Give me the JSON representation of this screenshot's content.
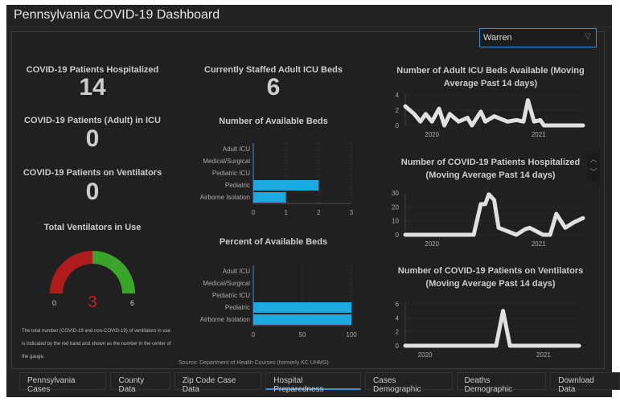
{
  "header": {
    "title": "Pennsylvania COVID-19 Dashboard"
  },
  "county_select": {
    "value": "Warren"
  },
  "indicators": [
    {
      "label": "COVID-19 Patients Hospitalized",
      "value": "14"
    },
    {
      "label": "COVID-19 Patients (Adult) in ICU",
      "value": "0"
    },
    {
      "label": "COVID-19 Patients on Ventilators",
      "value": "0"
    },
    {
      "label": "Currently Staffed Adult ICU Beds",
      "value": "6"
    }
  ],
  "gauge": {
    "title": "Total Ventilators in Use",
    "min": "0",
    "max": "6",
    "value": "3",
    "fraction": 0.5,
    "used_color": "#b01c1c",
    "free_color": "#3aa52a",
    "note": "The total number (COVID-19 and non-COVID-19) of ventilators in use is indicated by the red band and shown as the number in the center of the gauge."
  },
  "source": "Source: Department of Health Courses (formerly KC UHMS)",
  "chart_data": [
    {
      "type": "bar",
      "title": "Number of Available Beds",
      "categories": [
        "Adult ICU",
        "Medical/Surgical",
        "Pediatric ICU",
        "Pediatric",
        "Airborne Isolation"
      ],
      "values": [
        0,
        0,
        0,
        2,
        1
      ],
      "xlim": [
        0,
        3
      ],
      "ticks": [
        "0",
        "1",
        "2",
        "3"
      ],
      "color": "#1ba9e1"
    },
    {
      "type": "bar",
      "title": "Percent of Available Beds",
      "categories": [
        "Adult ICU",
        "Medical/Surgical",
        "Pediatric ICU",
        "Pediatric",
        "Airborne Isolation"
      ],
      "values": [
        0,
        0,
        0,
        100,
        100
      ],
      "xlim": [
        0,
        100
      ],
      "ticks": [
        "0",
        "50",
        "100"
      ],
      "color": "#1ba9e1"
    },
    {
      "type": "line",
      "title": "Number of Adult ICU Beds Available (Moving Average Past 14 days)",
      "xlabel_ticks": [
        "2020",
        "2021"
      ],
      "x_unit": "months since Jan 2020",
      "xlim": [
        -3,
        17
      ],
      "ylim": [
        0,
        4
      ],
      "yticks": [
        "0",
        "2",
        "4"
      ],
      "x": [
        -3,
        -2,
        -1.3,
        -0.7,
        0,
        0.8,
        1.4,
        2,
        3,
        4,
        4.5,
        5.5,
        6,
        7,
        8.5,
        9.5,
        10.3,
        10.8,
        11.5,
        12.2,
        12.6,
        17
      ],
      "y": [
        2.5,
        1.5,
        0.5,
        1.5,
        0.5,
        2.2,
        0,
        1.5,
        0.5,
        1,
        0,
        1.8,
        0.5,
        1.2,
        0.5,
        0.7,
        0.5,
        3.3,
        0.5,
        0.7,
        0,
        0
      ]
    },
    {
      "type": "line",
      "title": "Number of COVID-19 Patients Hospitalized (Moving Average Past 14 days)",
      "xlabel_ticks": [
        "2020",
        "2021"
      ],
      "x_unit": "months since Jan 2020",
      "xlim": [
        -3,
        17
      ],
      "ylim": [
        0,
        30
      ],
      "yticks": [
        "0",
        "10",
        "20",
        "30"
      ],
      "x": [
        -3,
        4.7,
        5.5,
        6,
        6.4,
        7,
        7.5,
        9.5,
        10.5,
        11,
        12.5,
        13.3,
        14,
        15,
        16,
        17
      ],
      "y": [
        0,
        0,
        22,
        22,
        29,
        25,
        5,
        0,
        4,
        5,
        0,
        0,
        15,
        5,
        9,
        12
      ]
    },
    {
      "type": "line",
      "title": "Number of COVID-19 Patients on Ventilators (Moving Average Past 14 days)",
      "xlabel_ticks": [
        "2020",
        "2021"
      ],
      "x_unit": "months since Jan 2020",
      "xlim": [
        -2,
        16
      ],
      "ylim": [
        0,
        6
      ],
      "yticks": [
        "0",
        "2",
        "4",
        "6"
      ],
      "x": [
        -2,
        7.2,
        7.9,
        8.6,
        15.6
      ],
      "y": [
        0,
        0,
        5,
        0,
        0
      ]
    }
  ],
  "tabs": [
    "Pennsylvania Cases",
    "County Data",
    "Zip Code Case Data",
    "Hospital Preparedness",
    "Cases Demographic",
    "Deaths Demographic",
    "Download Data"
  ],
  "active_tab": 3
}
